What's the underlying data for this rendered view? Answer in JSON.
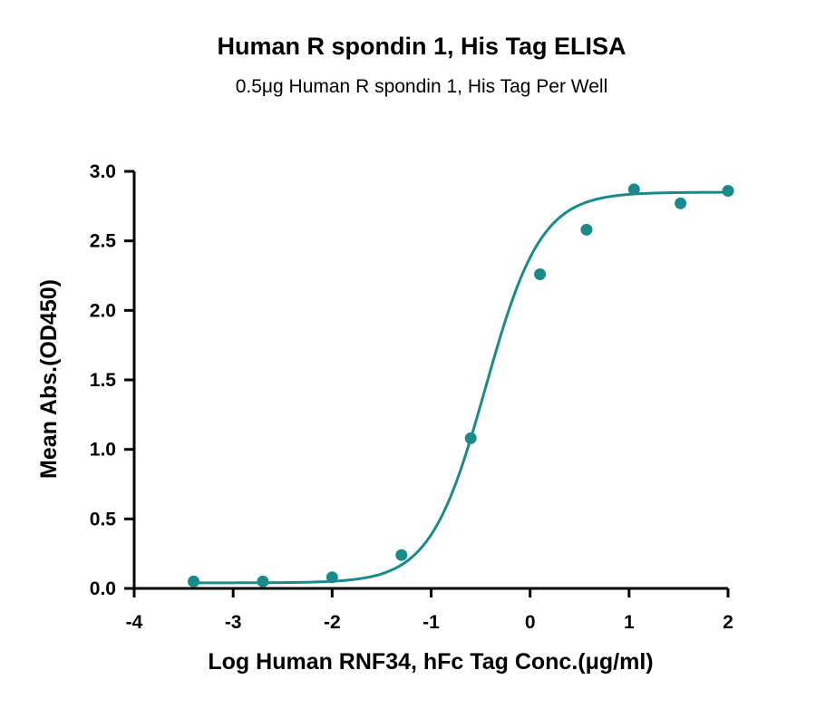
{
  "chart_data": {
    "type": "scatter",
    "title": "Human R spondin 1, His Tag ELISA",
    "subtitle": "0.5μg Human R spondin 1, His Tag Per Well",
    "xlabel": "Log Human RNF34, hFc Tag Conc.(μg/ml)",
    "ylabel": "Mean Abs.(OD450)",
    "xlim": [
      -4,
      2
    ],
    "ylim": [
      0,
      3
    ],
    "x_ticks": [
      "-4",
      "-3",
      "-2",
      "-1",
      "0",
      "1",
      "2"
    ],
    "y_ticks": [
      "0.0",
      "0.5",
      "1.0",
      "1.5",
      "2.0",
      "2.5",
      "3.0"
    ],
    "grid": false,
    "color": "#1a8a8a",
    "series": [
      {
        "x": [
          -3.4,
          -2.7,
          -2.0,
          -1.3,
          -0.6,
          0.1,
          0.57,
          1.05,
          1.52,
          2.0
        ],
        "y": [
          0.05,
          0.05,
          0.08,
          0.24,
          1.08,
          2.26,
          2.58,
          2.87,
          2.77,
          2.86
        ],
        "fit": "four-parameter logistic"
      }
    ]
  }
}
